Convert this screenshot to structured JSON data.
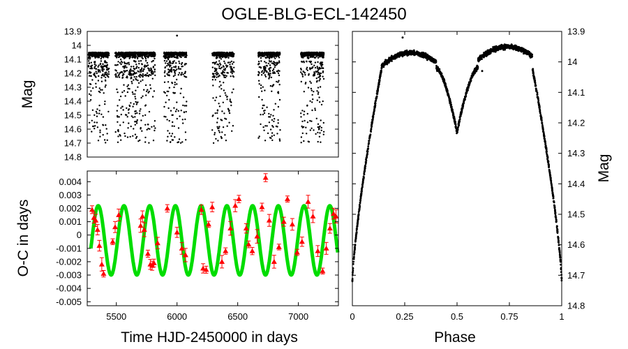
{
  "title": "OGLE-BLG-ECL-142450",
  "chart_data": [
    {
      "id": "lightcurve_time",
      "type": "scatter",
      "xlabel": "",
      "ylabel": "Mag",
      "xlim": [
        5260,
        7330
      ],
      "ylim": [
        14.8,
        13.9
      ],
      "y_inverted": true,
      "yticks": [
        "13.9",
        "14",
        "14.1",
        "14.2",
        "14.3",
        "14.4",
        "14.5",
        "14.6",
        "14.7",
        "14.8"
      ],
      "observing_seasons": [
        [
          5270,
          5440
        ],
        [
          5490,
          5660
        ],
        [
          5640,
          5820
        ],
        [
          5890,
          6080
        ],
        [
          6290,
          6470
        ],
        [
          6670,
          6850
        ],
        [
          7020,
          7210
        ]
      ],
      "mag_bright": 14.05,
      "mag_faint": 14.7,
      "outliers": [
        {
          "x": 6000,
          "y": 13.93
        }
      ],
      "color": "#000000"
    },
    {
      "id": "oc_diagram",
      "type": "scatter",
      "xlabel": "Time HJD-2450000 in days",
      "ylabel": "O-C in days",
      "xlim": [
        5260,
        7330
      ],
      "ylim": [
        -0.0053,
        0.0048
      ],
      "xticks": [
        "5500",
        "6000",
        "6500",
        "7000"
      ],
      "yticks": [
        "0.004",
        "0.003",
        "0.002",
        "0.001",
        "0",
        "-0.001",
        "-0.002",
        "-0.003",
        "-0.004",
        "-0.005"
      ],
      "model": {
        "name": "fit",
        "color": "#00dd00",
        "amplitude": 0.0026,
        "offset": -0.0004,
        "period_days": 212,
        "phase_zero_days": 5298
      },
      "series": [
        {
          "name": "measured",
          "color": "#ff0000",
          "marker": "triangle",
          "points": [
            [
              5300,
              0.0019
            ],
            [
              5315,
              0.0013
            ],
            [
              5330,
              0.0011
            ],
            [
              5345,
              0.0004
            ],
            [
              5360,
              -0.0008
            ],
            [
              5380,
              -0.0022
            ],
            [
              5395,
              -0.0029
            ],
            [
              5470,
              -0.0005
            ],
            [
              5490,
              0.0006
            ],
            [
              5520,
              0.0015
            ],
            [
              5700,
              0.0007
            ],
            [
              5715,
              0.0014
            ],
            [
              5730,
              0.0004
            ],
            [
              5760,
              -0.0014
            ],
            [
              5780,
              -0.0022
            ],
            [
              5795,
              -0.0023
            ],
            [
              5810,
              -0.0021
            ],
            [
              5840,
              -0.0006
            ],
            [
              5920,
              0.002
            ],
            [
              6000,
              0.0002
            ],
            [
              6040,
              -0.001
            ],
            [
              6070,
              -0.0015
            ],
            [
              6200,
              0.0019
            ],
            [
              6215,
              -0.0025
            ],
            [
              6240,
              -0.0026
            ],
            [
              6260,
              0.0008
            ],
            [
              6290,
              0.0021
            ],
            [
              6370,
              -0.002
            ],
            [
              6400,
              -0.0012
            ],
            [
              6440,
              0.0005
            ],
            [
              6480,
              0.0022
            ],
            [
              6510,
              0.0027
            ],
            [
              6570,
              0.0005
            ],
            [
              6590,
              -0.0007
            ],
            [
              6620,
              -0.0012
            ],
            [
              6660,
              -0.0001
            ],
            [
              6700,
              0.0021
            ],
            [
              6730,
              0.0043
            ],
            [
              6760,
              0.0011
            ],
            [
              6800,
              -0.002
            ],
            [
              6840,
              -0.0009
            ],
            [
              6880,
              0.001
            ],
            [
              6910,
              0.0027
            ],
            [
              6950,
              0.0008
            ],
            [
              6990,
              -0.0013
            ],
            [
              7030,
              -0.0005
            ],
            [
              7080,
              0.0025
            ],
            [
              7120,
              0.0014
            ],
            [
              7160,
              -0.0012
            ],
            [
              7200,
              -0.0027
            ],
            [
              7230,
              -0.001
            ],
            [
              7260,
              0.0005
            ],
            [
              7290,
              0.0016
            ],
            [
              7310,
              0.0014
            ]
          ]
        }
      ]
    },
    {
      "id": "phased_lightcurve",
      "type": "scatter",
      "xlabel": "Phase",
      "ylabel": "Mag",
      "ylabel_side": "right",
      "xlim": [
        0,
        1
      ],
      "ylim": [
        14.8,
        13.9
      ],
      "y_inverted": true,
      "xticks": [
        "0",
        "0.25",
        "0.5",
        "0.75",
        "1"
      ],
      "yticks": [
        "13.9",
        "14",
        "14.1",
        "14.2",
        "14.3",
        "14.4",
        "14.5",
        "14.6",
        "14.7",
        "14.8"
      ],
      "primary_minimum_mag": 14.72,
      "secondary_minimum_mag": 14.23,
      "secondary_minimum_phase": 0.5,
      "maximum_phase_025_mag": 13.97,
      "maximum_phase_075_mag": 13.95,
      "outliers": [
        {
          "x": 0.62,
          "y": 14.03
        },
        {
          "x": 0.24,
          "y": 13.92
        }
      ],
      "color": "#000000"
    }
  ]
}
